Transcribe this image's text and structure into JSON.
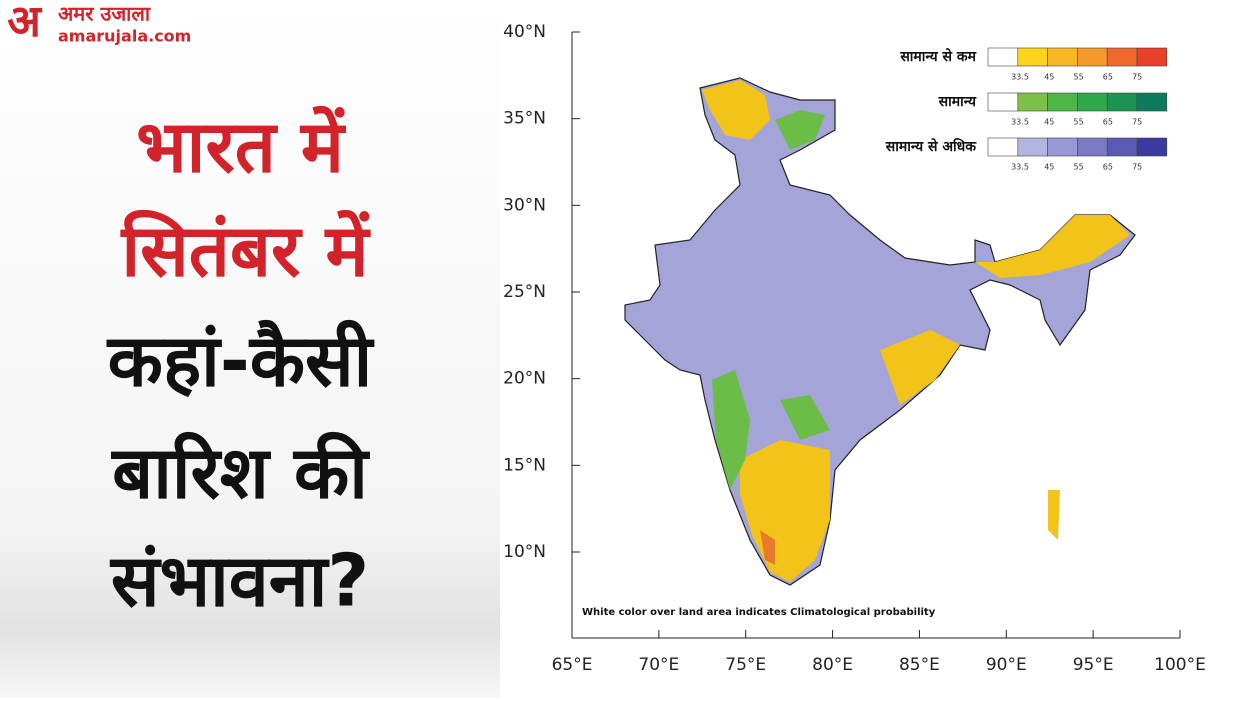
{
  "logo": {
    "mark": "अ",
    "name": "अमर उजाला",
    "site": "amarujala.com"
  },
  "headline": {
    "lines": [
      "भारत में",
      "सितंबर में",
      "कहां-कैसी",
      "बारिश की",
      "संभावना?"
    ]
  },
  "map": {
    "lat_labels": [
      "40°N",
      "35°N",
      "30°N",
      "25°N",
      "20°N",
      "15°N",
      "10°N"
    ],
    "lon_labels": [
      "65°E",
      "70°E",
      "75°E",
      "80°E",
      "85°E",
      "90°E",
      "95°E",
      "100°E"
    ],
    "footnote": "White color over land area indicates Climatological probability"
  },
  "legend": {
    "ticks": [
      "33.5",
      "45",
      "55",
      "65",
      "75"
    ],
    "rows": [
      {
        "label": "सामान्य से कम",
        "colors": [
          "#ffffff",
          "#fcd41c",
          "#f8b824",
          "#f49a2c",
          "#ee6a2c",
          "#e8402a"
        ]
      },
      {
        "label": "सामान्य",
        "colors": [
          "#ffffff",
          "#7cc04a",
          "#4cb648",
          "#2ea84a",
          "#1a9450",
          "#0e7a5c"
        ]
      },
      {
        "label": "सामान्य से अधिक",
        "colors": [
          "#ffffff",
          "#b4b4e0",
          "#9898d4",
          "#7a7ac4",
          "#5a5ab4",
          "#3a3aa0"
        ]
      }
    ]
  }
}
